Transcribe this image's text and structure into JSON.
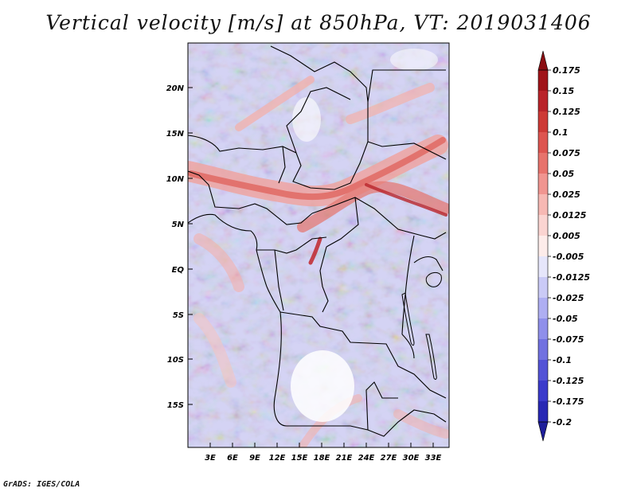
{
  "title": "Vertical velocity [m/s] at 850hPa, VT: 2019031406",
  "footer": "GrADS: IGES/COLA",
  "map": {
    "lat_labels": [
      "20N",
      "15N",
      "10N",
      "5N",
      "EQ",
      "5S",
      "10S",
      "15S"
    ],
    "lon_labels": [
      "3E",
      "6E",
      "9E",
      "12E",
      "15E",
      "18E",
      "21E",
      "24E",
      "27E",
      "30E",
      "33E"
    ]
  },
  "colorbar": {
    "levels": [
      {
        "label": "0.175",
        "color": "#a01419"
      },
      {
        "label": "0.15",
        "color": "#b9242a"
      },
      {
        "label": "0.125",
        "color": "#cd3a36"
      },
      {
        "label": "0.1",
        "color": "#dd5550"
      },
      {
        "label": "0.075",
        "color": "#e7736c"
      },
      {
        "label": "0.05",
        "color": "#f09590"
      },
      {
        "label": "0.025",
        "color": "#f6b8b3"
      },
      {
        "label": "0.0125",
        "color": "#fad4d1"
      },
      {
        "label": "0.005",
        "color": "#fdecea"
      },
      {
        "label": "-0.005",
        "color": "#ffffff"
      },
      {
        "label": "-0.0125",
        "color": "#e6e6fb"
      },
      {
        "label": "-0.025",
        "color": "#cacaf6"
      },
      {
        "label": "-0.05",
        "color": "#aeaef2"
      },
      {
        "label": "-0.075",
        "color": "#8f8fea"
      },
      {
        "label": "-0.1",
        "color": "#7171e0"
      },
      {
        "label": "-0.125",
        "color": "#5353d6"
      },
      {
        "label": "-0.175",
        "color": "#3a3acb"
      },
      {
        "label": "-0.2",
        "color": "#2828b4"
      }
    ],
    "top_cap_color": "#8b0e12",
    "bottom_cap_color": "#1e1e9a"
  }
}
